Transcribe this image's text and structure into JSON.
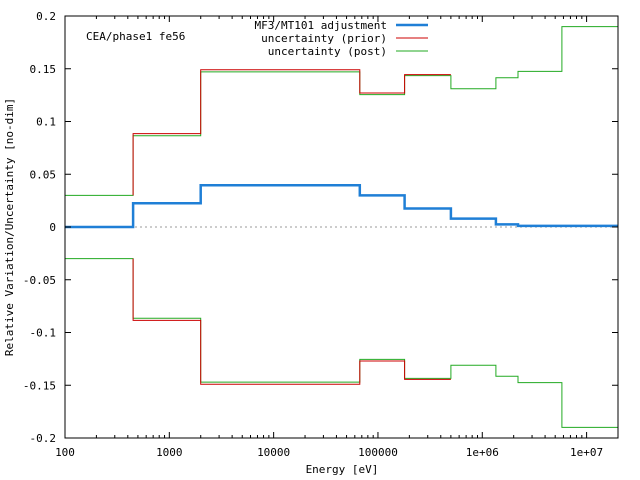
{
  "chart_data": {
    "type": "line",
    "title": "",
    "annotation": "CEA/phase1 fe56",
    "xlabel": "Energy [eV]",
    "ylabel": "Relative Variation/Uncertainty [no-dim]",
    "xscale": "log",
    "xlim": [
      100,
      20000000
    ],
    "ylim": [
      -0.2,
      0.2
    ],
    "x_ticks": [
      {
        "value": 100,
        "label": "100"
      },
      {
        "value": 1000,
        "label": "1000"
      },
      {
        "value": 10000,
        "label": "10000"
      },
      {
        "value": 100000,
        "label": "100000"
      },
      {
        "value": 1000000,
        "label": "1e+06"
      },
      {
        "value": 10000000,
        "label": "1e+07"
      }
    ],
    "y_ticks": [
      {
        "value": 0.2,
        "label": "0.2"
      },
      {
        "value": 0.15,
        "label": "0.15"
      },
      {
        "value": 0.1,
        "label": "0.1"
      },
      {
        "value": 0.05,
        "label": "0.05"
      },
      {
        "value": 0,
        "label": "0"
      },
      {
        "value": -0.05,
        "label": "-0.05"
      },
      {
        "value": -0.1,
        "label": "-0.1"
      },
      {
        "value": -0.15,
        "label": "-0.15"
      },
      {
        "value": -0.2,
        "label": "-0.2"
      }
    ],
    "grid": false,
    "zero_line": true,
    "legend_position": "top-right",
    "series": [
      {
        "name": "MF3/MT101 adjustment",
        "color": "#1f7fd6",
        "width": 2.5,
        "step": true,
        "mirror": false,
        "x": [
          100,
          450,
          450,
          2000,
          2000,
          67000,
          67000,
          180000,
          180000,
          500000,
          500000,
          1350000,
          1350000,
          2200000,
          2200000,
          20000000
        ],
        "y": [
          0,
          0,
          0.0225,
          0.0225,
          0.0395,
          0.0395,
          0.03,
          0.03,
          0.0175,
          0.0175,
          0.008,
          0.008,
          0.0025,
          0.0025,
          0.001,
          0.001
        ]
      },
      {
        "name": "uncertainty (prior)",
        "color": "#cc0000",
        "width": 1,
        "step": true,
        "mirror": true,
        "x": [
          450,
          450,
          2000,
          2000,
          67000,
          67000,
          180000,
          180000,
          500000
        ],
        "y": [
          0.03,
          0.0885,
          0.0885,
          0.149,
          0.149,
          0.127,
          0.127,
          0.1445,
          0.1445
        ]
      },
      {
        "name": "uncertainty (post)",
        "color": "#22aa22",
        "width": 1,
        "step": true,
        "mirror": true,
        "x": [
          100,
          450,
          450,
          2000,
          2000,
          67000,
          67000,
          180000,
          180000,
          500000,
          500000,
          1350000,
          1350000,
          2200000,
          2200000,
          5800000,
          5800000,
          20000000
        ],
        "y": [
          0.03,
          0.03,
          0.0865,
          0.0865,
          0.147,
          0.147,
          0.1255,
          0.1255,
          0.1435,
          0.1435,
          0.131,
          0.131,
          0.1415,
          0.1415,
          0.1475,
          0.1475,
          0.19,
          0.19
        ]
      }
    ]
  }
}
